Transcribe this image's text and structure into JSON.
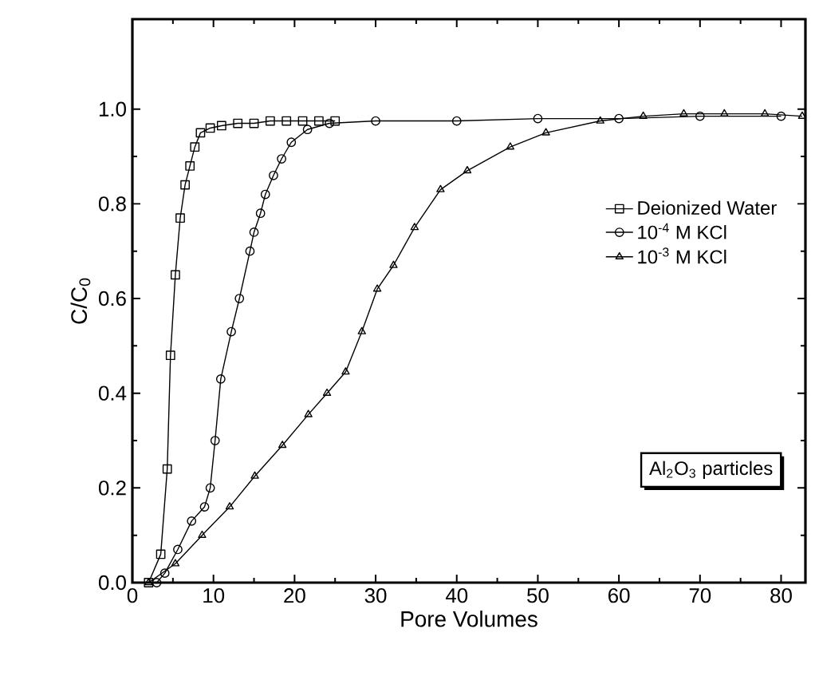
{
  "chart_data": {
    "type": "line",
    "xlabel": "Pore Volumes",
    "ylabel": "C/C$_{0}$",
    "xlim": [
      0,
      83
    ],
    "ylim": [
      0,
      1.19
    ],
    "xticks": [
      0,
      10,
      20,
      30,
      40,
      50,
      60,
      70,
      80
    ],
    "yticks": [
      {
        "value": 0,
        "label": "0.0"
      },
      {
        "value": 0.2,
        "label": "0.2"
      },
      {
        "value": 0.4,
        "label": "0.4"
      },
      {
        "value": 0.6,
        "label": "0.6"
      },
      {
        "value": 0.8,
        "label": "0.8"
      },
      {
        "value": 1.0,
        "label": "1.0"
      }
    ],
    "grid": false,
    "legend": "right",
    "line_style": "solid",
    "annotations": [
      "Al$_{2}$O$_{3}$ particles"
    ],
    "series": [
      {
        "name": "Deionized Water",
        "color": "#000000",
        "marker": "square",
        "x": [
          2,
          3.5,
          4.3,
          4.7,
          5.3,
          5.9,
          6.5,
          7.1,
          7.7,
          8.4,
          9.6,
          11,
          13,
          15,
          17,
          19,
          21,
          23,
          25
        ],
        "values": [
          0,
          0.06,
          0.24,
          0.48,
          0.65,
          0.77,
          0.84,
          0.88,
          0.92,
          0.95,
          0.96,
          0.965,
          0.97,
          0.97,
          0.975,
          0.975,
          0.975,
          0.975,
          0.975
        ]
      },
      {
        "name": "10$^{-4}$ M KCl",
        "color": "#000000",
        "marker": "circle",
        "x": [
          3,
          4,
          5.6,
          7.3,
          8.9,
          9.6,
          10.2,
          10.9,
          12.2,
          13.2,
          14.5,
          15,
          15.8,
          16.4,
          17.4,
          18.4,
          19.6,
          21.6,
          24.3,
          30,
          40,
          50,
          60,
          70,
          80
        ],
        "values": [
          0,
          0.02,
          0.07,
          0.13,
          0.16,
          0.2,
          0.3,
          0.43,
          0.53,
          0.6,
          0.7,
          0.74,
          0.78,
          0.82,
          0.86,
          0.895,
          0.93,
          0.957,
          0.97,
          0.975,
          0.975,
          0.98,
          0.98,
          0.985,
          0.985
        ]
      },
      {
        "name": "10$^{-3}$ M KCl",
        "color": "#000000",
        "marker": "triangle",
        "x": [
          2,
          5.3,
          8.6,
          12,
          15.1,
          18.5,
          21.7,
          24,
          26.3,
          28.3,
          30.2,
          32.2,
          34.8,
          38,
          41.3,
          46.6,
          51,
          57.7,
          63,
          68,
          73,
          78,
          82.6
        ],
        "values": [
          0,
          0.04,
          0.1,
          0.16,
          0.225,
          0.29,
          0.355,
          0.4,
          0.445,
          0.53,
          0.62,
          0.67,
          0.75,
          0.83,
          0.87,
          0.92,
          0.95,
          0.975,
          0.985,
          0.99,
          0.99,
          0.99,
          0.985
        ]
      }
    ]
  }
}
